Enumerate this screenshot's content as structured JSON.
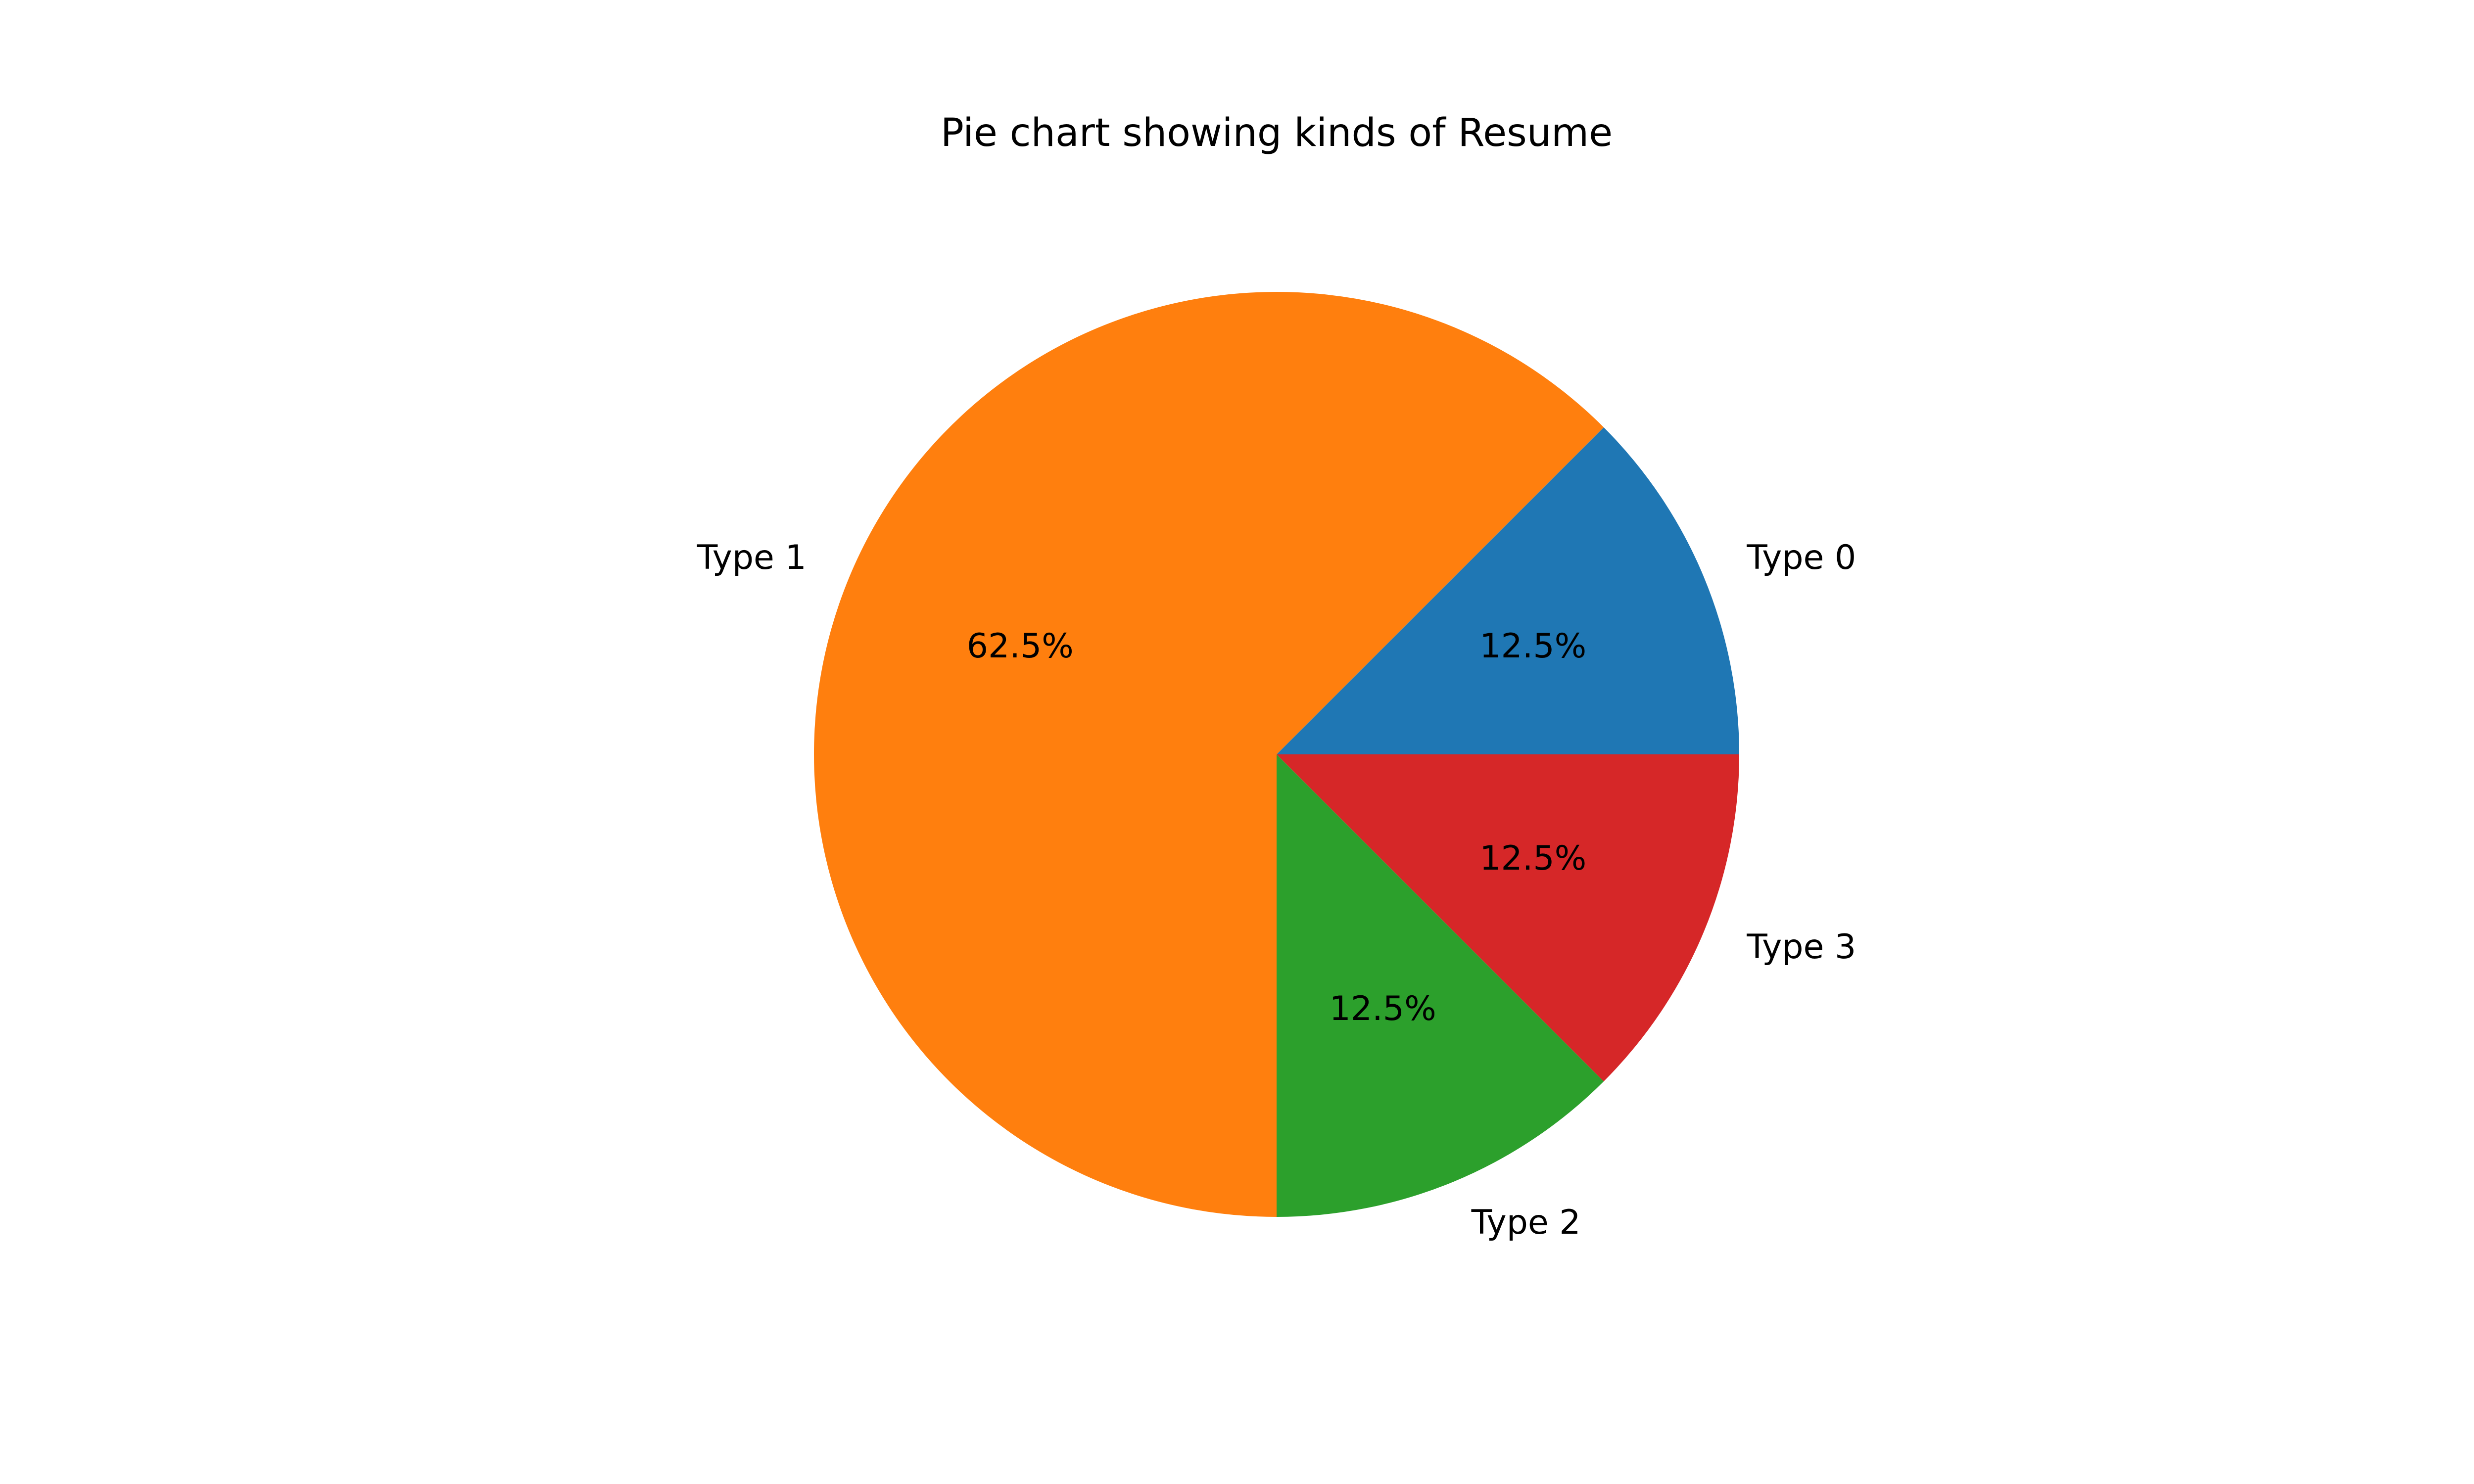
{
  "chart_data": {
    "type": "pie",
    "title": "Pie chart showing kinds of Resume",
    "categories": [
      "Type 0",
      "Type 1",
      "Type 2",
      "Type 3"
    ],
    "values": [
      12.5,
      62.5,
      12.5,
      12.5
    ],
    "value_labels": [
      "12.5%",
      "62.5%",
      "12.5%",
      "12.5%"
    ],
    "colors": [
      "#1f77b4",
      "#ff7f0e",
      "#2ca02c",
      "#d62728"
    ],
    "start_angle_deg": 0,
    "direction": "counterclockwise",
    "legend": "none"
  }
}
